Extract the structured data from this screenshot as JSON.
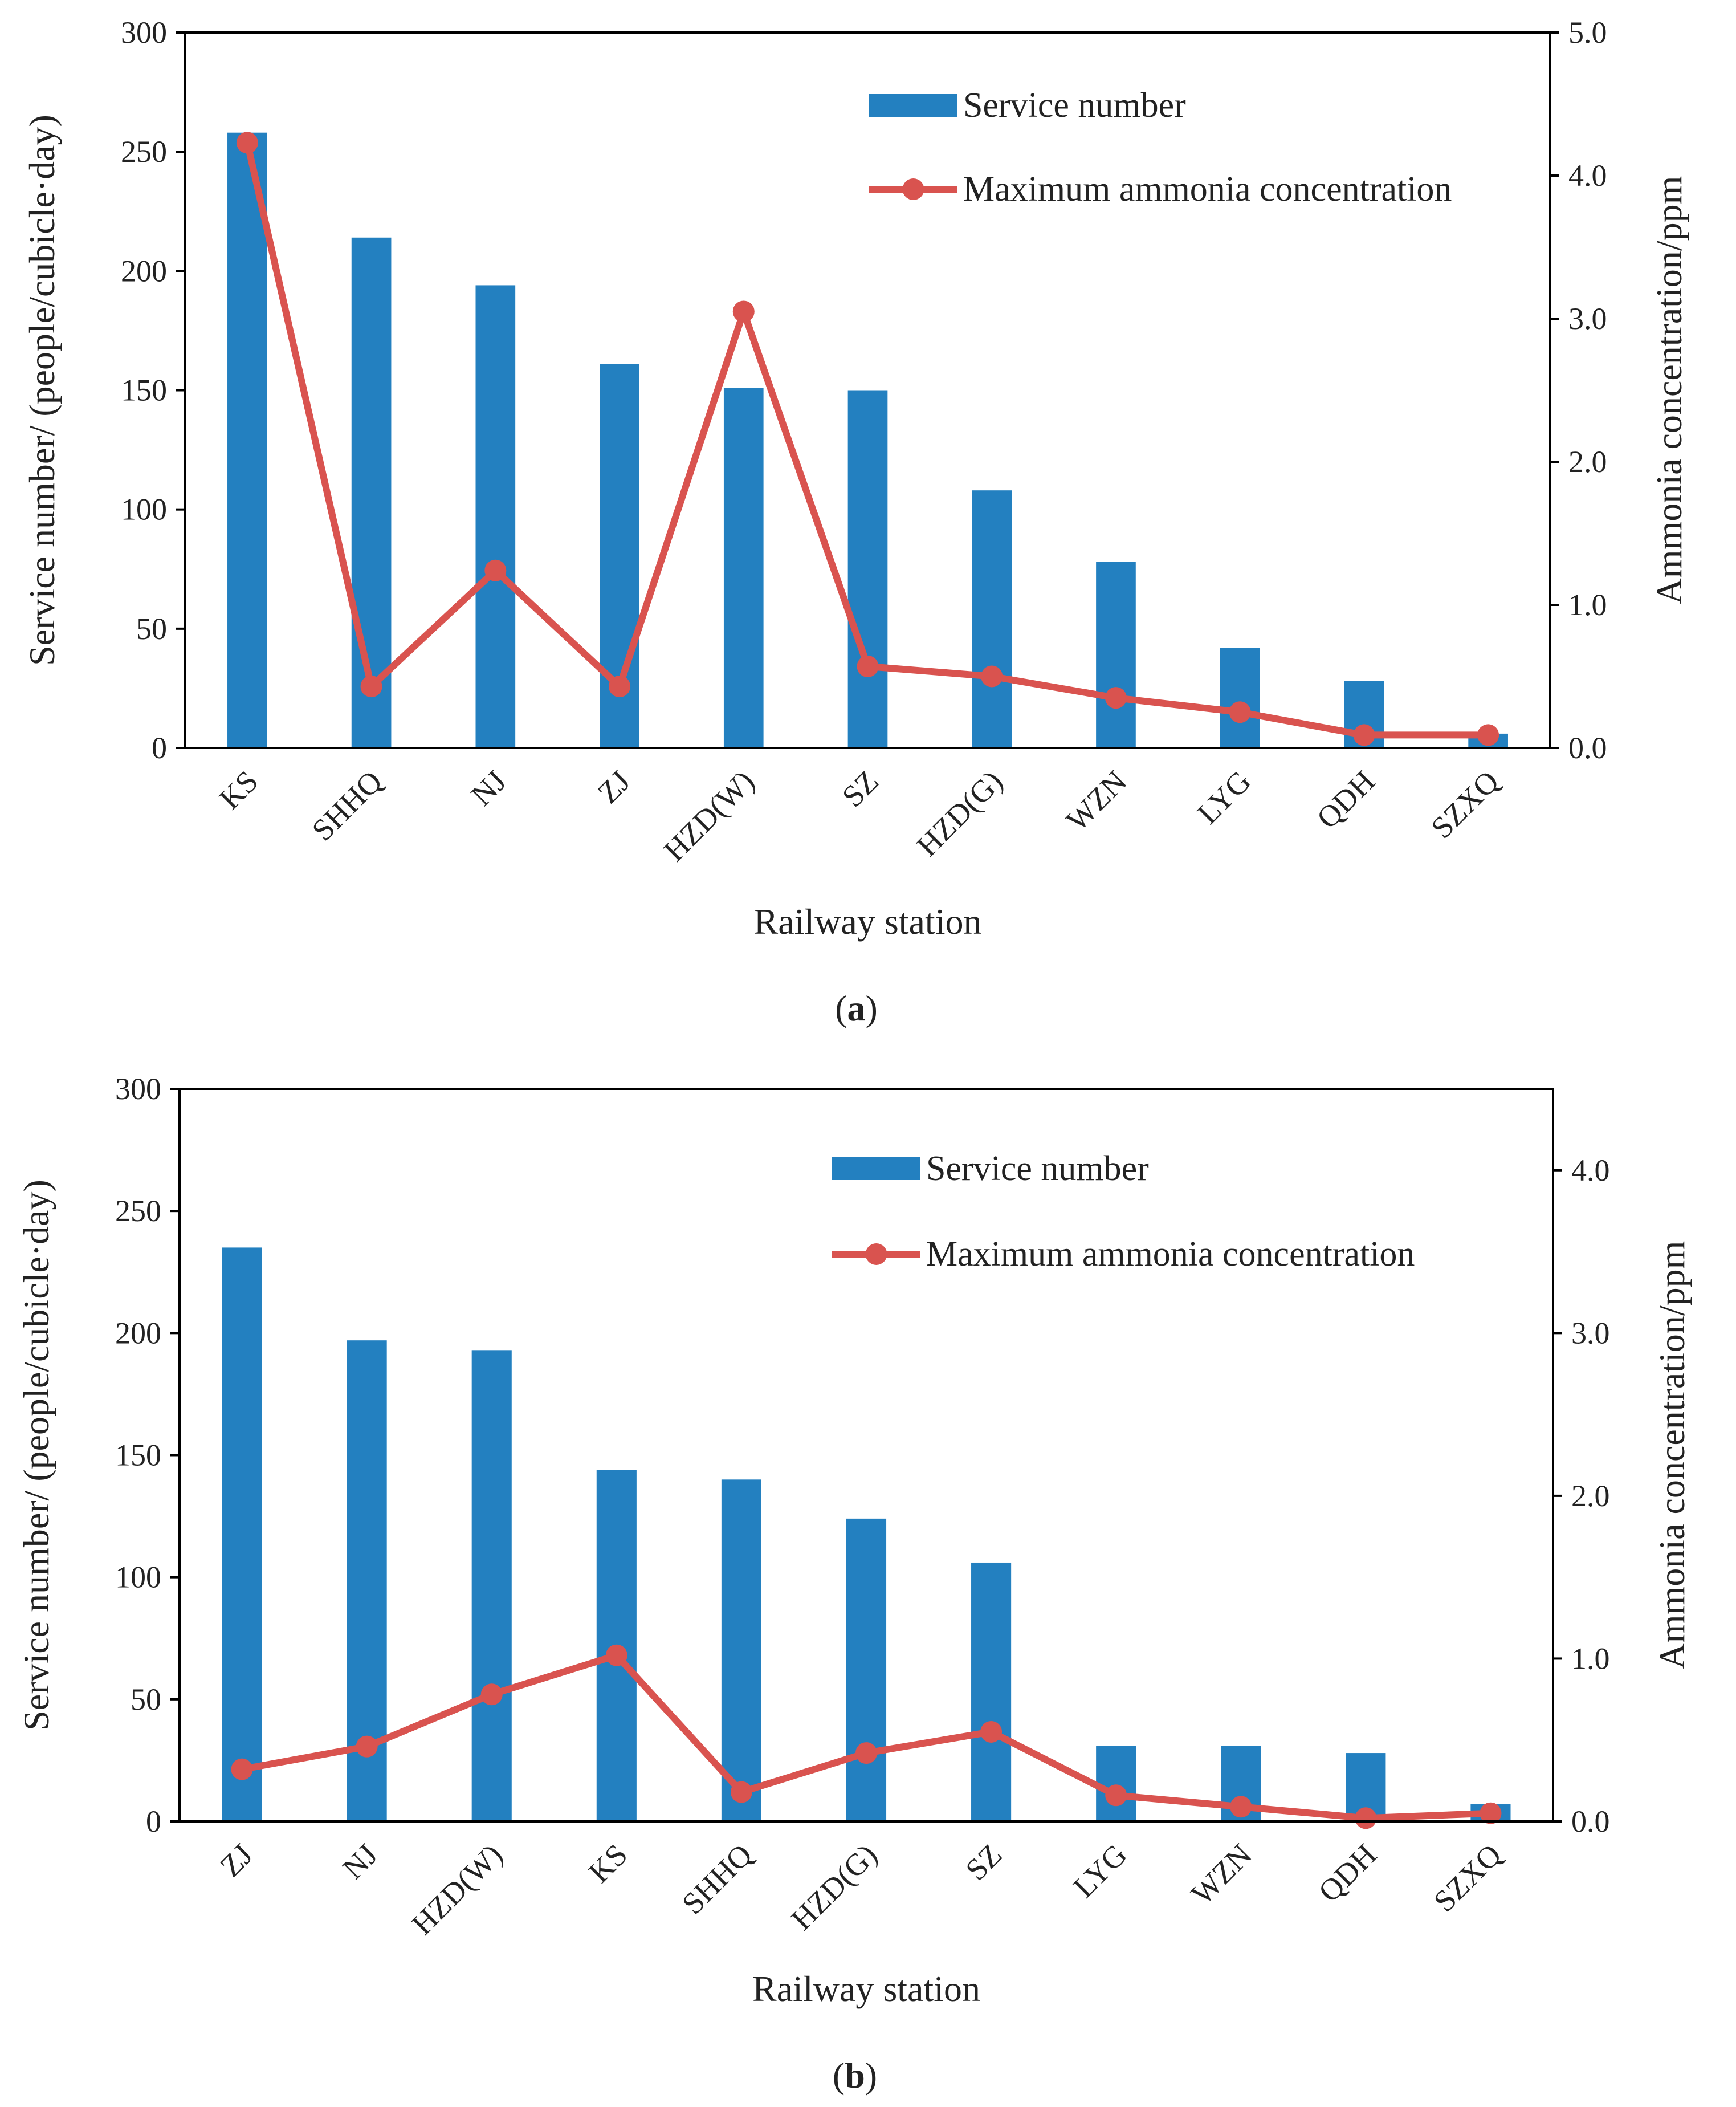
{
  "chart_data": [
    {
      "type": "bar",
      "panel_label": "a",
      "caption_open": "(",
      "caption_close": ")",
      "categories": [
        "KS",
        "SHHQ",
        "NJ",
        "ZJ",
        "HZD(W)",
        "SZ",
        "HZD(G)",
        "WZN",
        "LYG",
        "QDH",
        "SZXQ"
      ],
      "series": [
        {
          "name": "Service number",
          "type": "bar",
          "axis": "left",
          "color": "#2380c0",
          "values": [
            258,
            214,
            194,
            161,
            151,
            150,
            108,
            78,
            42,
            28,
            6
          ]
        },
        {
          "name": "Maximum ammonia concentration",
          "type": "line",
          "axis": "right",
          "color": "#d9534f",
          "values": [
            4.23,
            0.43,
            1.24,
            0.43,
            3.05,
            0.57,
            0.5,
            0.35,
            0.25,
            0.09,
            0.09
          ]
        }
      ],
      "xlabel": "Railway station",
      "ylabel": "Service number/ (people/cubicle·day)",
      "y2label": "Ammonia concentration/ppm",
      "ylim": [
        0,
        300
      ],
      "y2lim": [
        0,
        5
      ],
      "yticks": [
        "0",
        "50",
        "100",
        "150",
        "200",
        "250",
        "300"
      ],
      "y2ticks": [
        "0.0",
        "1.0",
        "2.0",
        "3.0",
        "4.0",
        "5.0"
      ],
      "legend_position": "top-right",
      "grid": false
    },
    {
      "type": "bar",
      "panel_label": "b",
      "caption_open": "(",
      "caption_close": ")",
      "categories": [
        "ZJ",
        "NJ",
        "HZD(W)",
        "KS",
        "SHHQ",
        "HZD(G)",
        "SZ",
        "LYG",
        "WZN",
        "QDH",
        "SZXQ"
      ],
      "series": [
        {
          "name": "Service number",
          "type": "bar",
          "axis": "left",
          "color": "#2380c0",
          "values": [
            235,
            197,
            193,
            144,
            140,
            124,
            106,
            31,
            31,
            28,
            7
          ]
        },
        {
          "name": "Maximum ammonia concentration",
          "type": "line",
          "axis": "right",
          "color": "#d9534f",
          "values": [
            0.32,
            0.46,
            0.78,
            1.02,
            0.18,
            0.42,
            0.55,
            0.16,
            0.09,
            0.02,
            0.05
          ]
        }
      ],
      "xlabel": "Railway station",
      "ylabel": "Service number/ (people/cubicle·day)",
      "y2label": "Ammonia concentration/ppm",
      "ylim": [
        0,
        300
      ],
      "y2lim": [
        0,
        4.5
      ],
      "yticks": [
        "0",
        "50",
        "100",
        "150",
        "200",
        "250",
        "300"
      ],
      "y2ticks": [
        "0.0",
        "1.0",
        "2.0",
        "3.0",
        "4.0"
      ],
      "legend_position": "top-right",
      "grid": false
    }
  ]
}
